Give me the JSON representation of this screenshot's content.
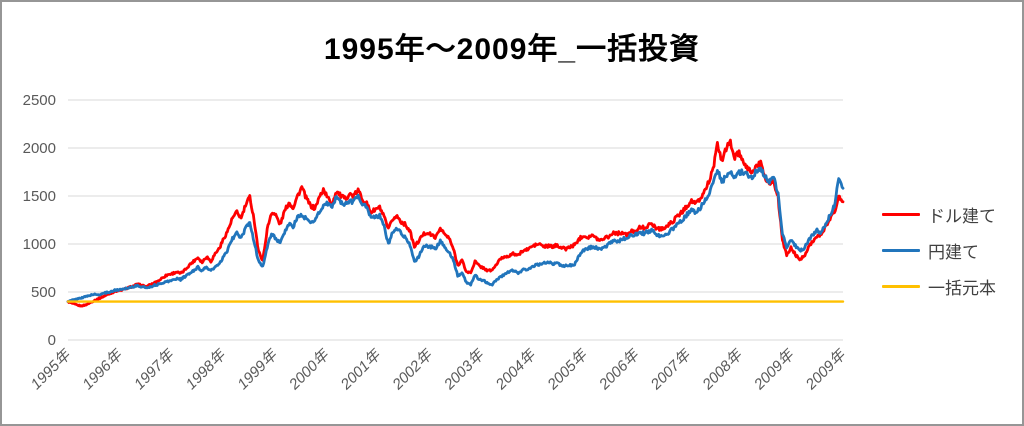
{
  "chart_data": {
    "type": "line",
    "title": "1995年～2009年_一括投資",
    "xlabel": "",
    "ylabel": "",
    "ylim": [
      0,
      2500
    ],
    "y_ticks": [
      0,
      500,
      1000,
      1500,
      2000,
      2500
    ],
    "x_tick_labels": [
      "1995年",
      "1996年",
      "1997年",
      "1998年",
      "1999年",
      "2000年",
      "2001年",
      "2002年",
      "2003年",
      "2004年",
      "2005年",
      "2006年",
      "2007年",
      "2008年",
      "2009年",
      "2009年"
    ],
    "x_range_note": "monthly points, 1995-01 to 2009-12",
    "grid": true,
    "legend_position": "right",
    "background_color": "#FFFFFF",
    "gridline_color": "#D9D9D9",
    "axis_text_color": "#595959",
    "border_color": "#969696",
    "volatility_texture": {
      "enabled": true,
      "pct": 1.6,
      "substeps": 5
    },
    "series": [
      {
        "name": "ドル建て",
        "color": "#FF0000",
        "values": [
          400,
          380,
          365,
          355,
          365,
          385,
          410,
          430,
          450,
          470,
          490,
          510,
          515,
          530,
          545,
          560,
          580,
          570,
          555,
          575,
          595,
          620,
          655,
          680,
          690,
          710,
          690,
          730,
          780,
          820,
          860,
          810,
          870,
          820,
          900,
          960,
          1060,
          1150,
          1270,
          1330,
          1270,
          1400,
          1490,
          1250,
          920,
          830,
          1150,
          1330,
          1300,
          1200,
          1340,
          1430,
          1380,
          1500,
          1590,
          1480,
          1400,
          1370,
          1480,
          1570,
          1480,
          1420,
          1550,
          1500,
          1470,
          1520,
          1500,
          1560,
          1470,
          1420,
          1330,
          1360,
          1380,
          1280,
          1150,
          1260,
          1290,
          1230,
          1200,
          1130,
          970,
          1030,
          1100,
          1120,
          1090,
          1070,
          1170,
          1100,
          1060,
          950,
          780,
          830,
          710,
          700,
          820,
          770,
          750,
          720,
          730,
          790,
          850,
          870,
          880,
          900,
          880,
          930,
          940,
          970,
          990,
          1000,
          970,
          980,
          970,
          990,
          960,
          950,
          970,
          990,
          1050,
          1090,
          1070,
          1090,
          1060,
          1040,
          1070,
          1080,
          1120,
          1110,
          1120,
          1090,
          1130,
          1140,
          1170,
          1170,
          1190,
          1210,
          1160,
          1160,
          1170,
          1210,
          1250,
          1300,
          1340,
          1400,
          1450,
          1420,
          1460,
          1550,
          1650,
          1780,
          2030,
          1870,
          1990,
          2060,
          1900,
          1950,
          1830,
          1790,
          1750,
          1810,
          1840,
          1700,
          1620,
          1660,
          1480,
          1050,
          880,
          960,
          890,
          840,
          870,
          970,
          1030,
          1080,
          1090,
          1180,
          1270,
          1330,
          1490,
          1440
        ]
      },
      {
        "name": "円建て",
        "color": "#2175BC",
        "values": [
          400,
          415,
          425,
          440,
          450,
          465,
          475,
          470,
          485,
          495,
          505,
          520,
          525,
          535,
          545,
          555,
          565,
          555,
          545,
          555,
          570,
          580,
          600,
          610,
          620,
          640,
          630,
          660,
          690,
          720,
          760,
          720,
          760,
          720,
          760,
          790,
          870,
          950,
          1060,
          1110,
          1060,
          1160,
          1230,
          1020,
          820,
          770,
          960,
          1110,
          1060,
          1000,
          1120,
          1210,
          1180,
          1280,
          1300,
          1260,
          1220,
          1250,
          1330,
          1400,
          1420,
          1380,
          1500,
          1440,
          1410,
          1450,
          1440,
          1510,
          1420,
          1380,
          1270,
          1280,
          1300,
          1180,
          1000,
          1130,
          1160,
          1110,
          1070,
          990,
          810,
          870,
          960,
          980,
          970,
          950,
          1040,
          960,
          920,
          830,
          670,
          700,
          600,
          580,
          680,
          630,
          620,
          590,
          580,
          630,
          660,
          690,
          710,
          730,
          700,
          730,
          730,
          760,
          780,
          790,
          800,
          810,
          790,
          800,
          780,
          770,
          780,
          790,
          870,
          930,
          950,
          970,
          960,
          940,
          970,
          1000,
          1030,
          1020,
          1060,
          1050,
          1090,
          1100,
          1120,
          1110,
          1130,
          1150,
          1090,
          1080,
          1090,
          1130,
          1170,
          1220,
          1250,
          1310,
          1360,
          1330,
          1370,
          1450,
          1530,
          1630,
          1780,
          1640,
          1710,
          1760,
          1690,
          1740,
          1750,
          1720,
          1690,
          1760,
          1790,
          1700,
          1650,
          1690,
          1530,
          1120,
          970,
          1040,
          980,
          930,
          950,
          1040,
          1090,
          1140,
          1120,
          1210,
          1300,
          1400,
          1690,
          1580
        ]
      },
      {
        "name": "一括元本",
        "color": "#FFC000",
        "constant_value": 400
      }
    ]
  }
}
